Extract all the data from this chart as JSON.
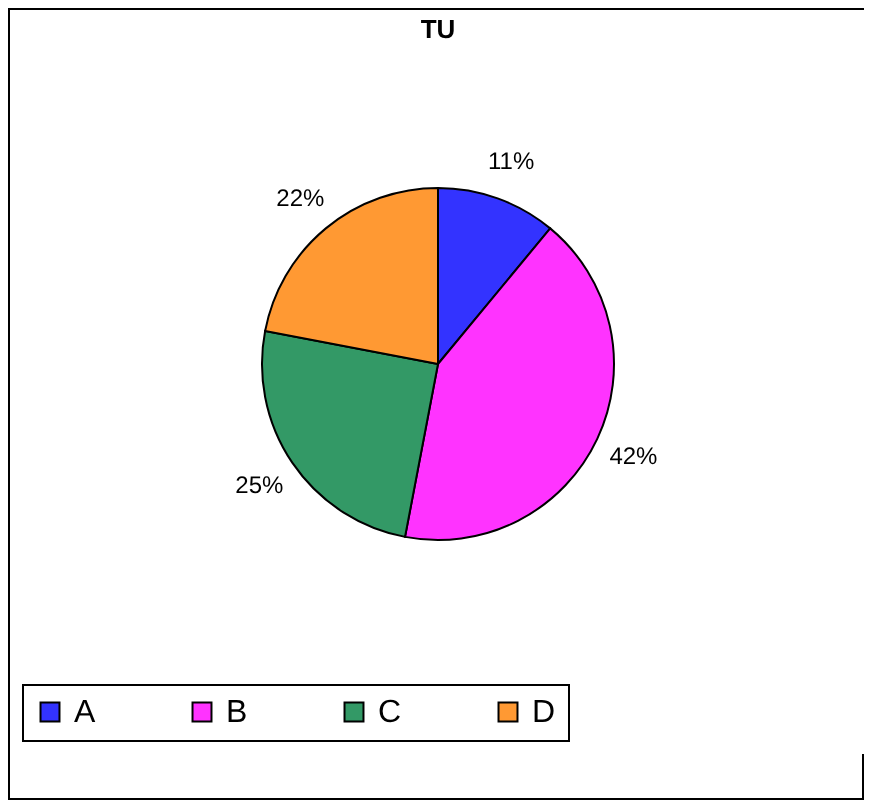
{
  "chart_data": {
    "type": "pie",
    "title": "TU",
    "categories": [
      "A",
      "B",
      "C",
      "D"
    ],
    "values": [
      11,
      42,
      25,
      22
    ],
    "value_labels": [
      "11%",
      "42%",
      "25%",
      "22%"
    ],
    "colors": [
      "#3333ff",
      "#ff33ff",
      "#339966",
      "#ff9933"
    ],
    "legend": "bottom"
  }
}
